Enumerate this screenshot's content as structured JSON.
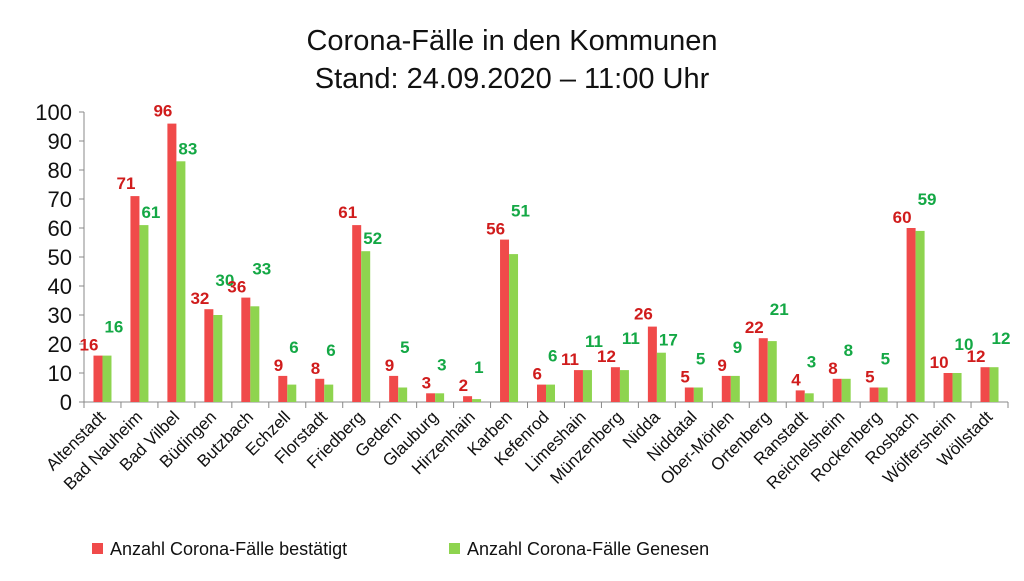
{
  "chart_data": {
    "type": "bar",
    "title": "Corona-Fälle in den Kommunen",
    "subtitle": "Stand: 24.09.2020 – 11:00 Uhr",
    "xlabel": "",
    "ylabel": "",
    "ylim": [
      0,
      100
    ],
    "yticks": [
      0,
      10,
      20,
      30,
      40,
      50,
      60,
      70,
      80,
      90,
      100
    ],
    "grid": false,
    "legend_position": "bottom",
    "categories": [
      "Altenstadt",
      "Bad Nauheim",
      "Bad Vilbel",
      "Büdingen",
      "Butzbach",
      "Echzell",
      "Florstadt",
      "Friedberg",
      "Gedern",
      "Glauburg",
      "Hirzenhain",
      "Karben",
      "Kefenrod",
      "Limeshain",
      "Münzenberg",
      "Nidda",
      "Niddatal",
      "Ober-Mörlen",
      "Ortenberg",
      "Ranstadt",
      "Reichelsheim",
      "Rockenberg",
      "Rosbach",
      "Wölfersheim",
      "Wöllstadt"
    ],
    "series": [
      {
        "name": "Anzahl Corona-Fälle bestätigt",
        "color": "#f04a4a",
        "label_color": "#d01c1c",
        "values": [
          16,
          71,
          96,
          32,
          36,
          9,
          8,
          61,
          9,
          3,
          2,
          56,
          6,
          11,
          12,
          26,
          5,
          9,
          22,
          4,
          8,
          5,
          60,
          10,
          12
        ]
      },
      {
        "name": "Anzahl Corona-Fälle Genesen",
        "color": "#8ed44f",
        "label_color": "#14a845",
        "values": [
          16,
          61,
          83,
          30,
          33,
          6,
          6,
          52,
          5,
          3,
          1,
          51,
          6,
          11,
          11,
          17,
          5,
          9,
          21,
          3,
          8,
          5,
          59,
          10,
          12
        ]
      }
    ]
  }
}
